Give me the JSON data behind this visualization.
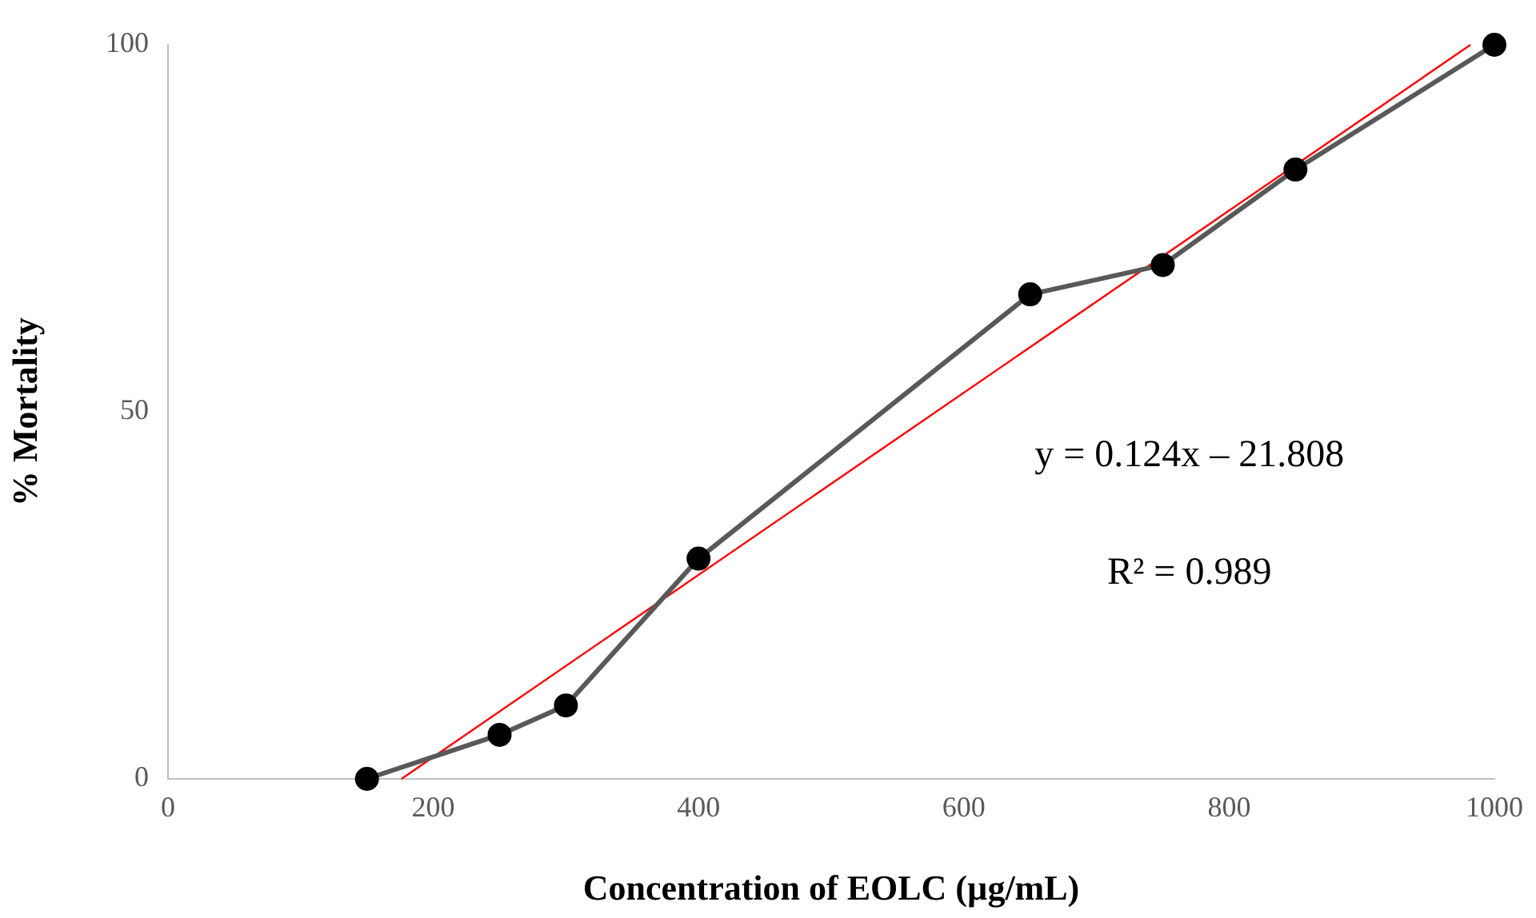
{
  "chart_data": {
    "type": "line",
    "xlabel": "Concentration of EOLC (µg/mL)",
    "ylabel": "% Mortality",
    "xlim": [
      0,
      1000
    ],
    "xticks": [
      0,
      200,
      400,
      600,
      800,
      1000
    ],
    "ylim": [
      0,
      100
    ],
    "yticks": [
      0,
      50,
      100
    ],
    "grid": false,
    "legend": false,
    "marker": "circle",
    "line_style": "solid",
    "series": [
      {
        "color": "#595959",
        "x": [
          150,
          250,
          300,
          400,
          650,
          750,
          850,
          1000
        ],
        "values": [
          0,
          6,
          10,
          30,
          66,
          70,
          83,
          100
        ]
      },
      {
        "color": "#ff0000",
        "marker": "none",
        "x": [
          176,
          982
        ],
        "values": [
          0,
          100
        ]
      }
    ],
    "annotations": [
      "y = 0.124x – 21.808",
      "R² = 0.989"
    ]
  }
}
